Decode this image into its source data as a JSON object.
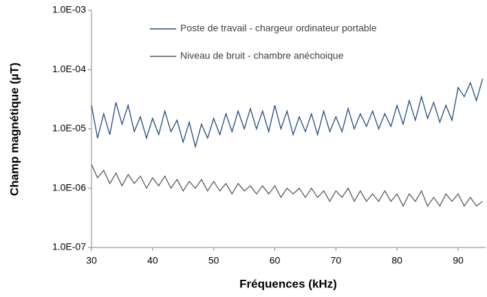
{
  "chart_data": {
    "type": "line",
    "xlabel": "Fréquences (kHz)",
    "ylabel": "Champ magnétique (µT)",
    "x": [
      30,
      31,
      32,
      33,
      34,
      35,
      36,
      37,
      38,
      39,
      40,
      41,
      42,
      43,
      44,
      45,
      46,
      47,
      48,
      49,
      50,
      51,
      52,
      53,
      54,
      55,
      56,
      57,
      58,
      59,
      60,
      61,
      62,
      63,
      64,
      65,
      66,
      67,
      68,
      69,
      70,
      71,
      72,
      73,
      74,
      75,
      76,
      77,
      78,
      79,
      80,
      81,
      82,
      83,
      84,
      85,
      86,
      87,
      88,
      89,
      90,
      91,
      92,
      93,
      94
    ],
    "series": [
      {
        "name": "Poste de travail - chargeur ordinateur portable",
        "color": "#1f497d",
        "values": [
          2.5e-05,
          7e-06,
          1.8e-05,
          8e-06,
          2.8e-05,
          1.2e-05,
          2.5e-05,
          9e-06,
          1.6e-05,
          7e-06,
          1.5e-05,
          8e-06,
          2e-05,
          9e-06,
          1.4e-05,
          6e-06,
          1.3e-05,
          5e-06,
          1.2e-05,
          7e-06,
          1.5e-05,
          8e-06,
          1.8e-05,
          9e-06,
          2e-05,
          1e-05,
          2.2e-05,
          1e-05,
          2e-05,
          9e-06,
          2.5e-05,
          1e-05,
          2e-05,
          8e-06,
          1.6e-05,
          9e-06,
          1.8e-05,
          8e-06,
          2e-05,
          9e-06,
          1.6e-05,
          9e-06,
          2.2e-05,
          1e-05,
          1.8e-05,
          1.1e-05,
          2e-05,
          1e-05,
          1.8e-05,
          1.1e-05,
          2.5e-05,
          1.2e-05,
          3e-05,
          1.4e-05,
          3.5e-05,
          1.5e-05,
          2.8e-05,
          1.3e-05,
          2.5e-05,
          1.4e-05,
          5e-05,
          3.5e-05,
          6e-05,
          3e-05,
          7e-05
        ]
      },
      {
        "name": "Niveau de bruit - chambre anéchoique",
        "color": "#595959",
        "values": [
          2.5e-06,
          1.5e-06,
          2e-06,
          1.2e-06,
          1.8e-06,
          1.1e-06,
          1.7e-06,
          1.2e-06,
          1.6e-06,
          1e-06,
          1.5e-06,
          1.1e-06,
          1.6e-06,
          1e-06,
          1.4e-06,
          9e-07,
          1.3e-06,
          1e-06,
          1.4e-06,
          9e-07,
          1.3e-06,
          9e-07,
          1.2e-06,
          8e-07,
          1.2e-06,
          9e-07,
          1.1e-06,
          8e-07,
          1.1e-06,
          8e-07,
          1.1e-06,
          7e-07,
          1e-06,
          8e-07,
          1e-06,
          7e-07,
          1e-06,
          7e-07,
          9e-07,
          6e-07,
          9e-07,
          7e-07,
          1e-06,
          6e-07,
          9e-07,
          6e-07,
          8e-07,
          6e-07,
          9e-07,
          6e-07,
          8e-07,
          5e-07,
          8e-07,
          6e-07,
          9e-07,
          5e-07,
          7e-07,
          5e-07,
          8e-07,
          6e-07,
          8e-07,
          5e-07,
          7e-07,
          5e-07,
          6e-07
        ]
      }
    ],
    "xlim": [
      30,
      94.5
    ],
    "xticks": [
      30,
      40,
      50,
      60,
      70,
      80,
      90
    ],
    "ylim": [
      1e-07,
      0.001
    ],
    "ylog": true,
    "yticks": [
      {
        "value": 1e-07,
        "label": "1.0E-07"
      },
      {
        "value": 1e-06,
        "label": "1.0E-06"
      },
      {
        "value": 1e-05,
        "label": "1.0E-05"
      },
      {
        "value": 0.0001,
        "label": "1.0E-04"
      },
      {
        "value": 0.001,
        "label": "1.0E-03"
      }
    ],
    "legend": "top"
  }
}
